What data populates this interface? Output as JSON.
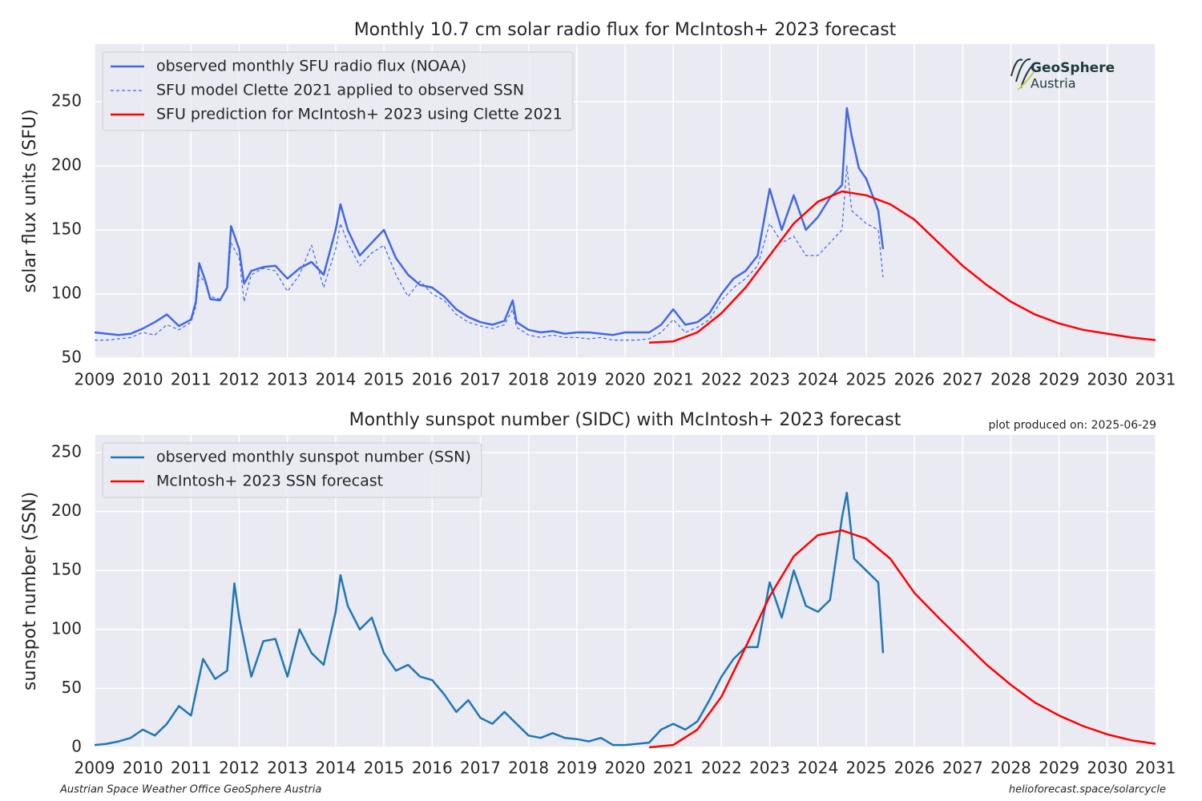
{
  "chart_data": [
    {
      "type": "line",
      "title": "Monthly 10.7 cm solar radio flux for McIntosh+ 2023 forecast",
      "ylabel": "solar flux units (SFU)",
      "xlim": [
        2009,
        2031
      ],
      "xticks": [
        2009,
        2010,
        2011,
        2012,
        2013,
        2014,
        2015,
        2016,
        2017,
        2018,
        2019,
        2020,
        2021,
        2022,
        2023,
        2024,
        2025,
        2026,
        2027,
        2028,
        2029,
        2030,
        2031
      ],
      "ylim": [
        50,
        295
      ],
      "yticks": [
        50,
        100,
        150,
        200,
        250
      ],
      "grid": true,
      "legend": "upper left",
      "series": [
        {
          "name": "observed monthly SFU radio flux (NOAA)",
          "color": "#4169e1",
          "dash": false,
          "x": [
            2009,
            2009.25,
            2009.5,
            2009.75,
            2010,
            2010.25,
            2010.5,
            2010.75,
            2011,
            2011.1,
            2011.17,
            2011.3,
            2011.4,
            2011.6,
            2011.75,
            2011.83,
            2012,
            2012.1,
            2012.25,
            2012.5,
            2012.75,
            2013,
            2013.25,
            2013.5,
            2013.75,
            2014,
            2014.1,
            2014.25,
            2014.5,
            2014.75,
            2015,
            2015.25,
            2015.5,
            2015.75,
            2016,
            2016.25,
            2016.5,
            2016.75,
            2017,
            2017.25,
            2017.5,
            2017.67,
            2017.75,
            2018,
            2018.25,
            2018.5,
            2018.75,
            2019,
            2019.25,
            2019.5,
            2019.75,
            2020,
            2020.25,
            2020.5,
            2020.75,
            2021,
            2021.25,
            2021.5,
            2021.75,
            2022,
            2022.25,
            2022.5,
            2022.75,
            2023,
            2023.25,
            2023.5,
            2023.75,
            2024,
            2024.25,
            2024.5,
            2024.6,
            2024.7,
            2024.85,
            2025,
            2025.25,
            2025.35
          ],
          "values": [
            70,
            69,
            68,
            69,
            73,
            78,
            84,
            75,
            80,
            94,
            124,
            110,
            96,
            95,
            105,
            153,
            135,
            108,
            118,
            121,
            122,
            112,
            120,
            125,
            115,
            150,
            170,
            150,
            130,
            140,
            150,
            128,
            115,
            107,
            105,
            98,
            88,
            82,
            78,
            76,
            79,
            95,
            78,
            72,
            70,
            71,
            69,
            70,
            70,
            69,
            68,
            70,
            70,
            70,
            76,
            88,
            76,
            78,
            85,
            100,
            112,
            118,
            130,
            182,
            150,
            177,
            150,
            160,
            175,
            185,
            245,
            223,
            198,
            190,
            165,
            135
          ]
        },
        {
          "name": "SFU model Clette 2021 applied to observed SSN",
          "color": "#4169e1",
          "dash": true,
          "x": [
            2009,
            2009.25,
            2009.5,
            2009.75,
            2010,
            2010.25,
            2010.5,
            2010.75,
            2011,
            2011.1,
            2011.17,
            2011.3,
            2011.4,
            2011.6,
            2011.75,
            2011.83,
            2012,
            2012.1,
            2012.25,
            2012.5,
            2012.75,
            2013,
            2013.25,
            2013.5,
            2013.75,
            2014,
            2014.1,
            2014.25,
            2014.5,
            2014.75,
            2015,
            2015.25,
            2015.5,
            2015.75,
            2016,
            2016.25,
            2016.5,
            2016.75,
            2017,
            2017.25,
            2017.5,
            2017.67,
            2017.75,
            2018,
            2018.25,
            2018.5,
            2018.75,
            2019,
            2019.25,
            2019.5,
            2019.75,
            2020,
            2020.25,
            2020.5,
            2020.75,
            2021,
            2021.25,
            2021.5,
            2021.75,
            2022,
            2022.25,
            2022.5,
            2022.75,
            2023,
            2023.25,
            2023.5,
            2023.75,
            2024,
            2024.25,
            2024.5,
            2024.6,
            2024.7,
            2024.85,
            2025,
            2025.25,
            2025.35
          ],
          "values": [
            64,
            64,
            65,
            66,
            70,
            68,
            76,
            72,
            78,
            90,
            115,
            108,
            98,
            96,
            104,
            140,
            128,
            94,
            115,
            120,
            118,
            102,
            115,
            138,
            105,
            135,
            155,
            140,
            122,
            132,
            138,
            115,
            98,
            110,
            100,
            95,
            84,
            78,
            75,
            73,
            76,
            88,
            74,
            68,
            66,
            68,
            66,
            66,
            65,
            66,
            64,
            64,
            64,
            65,
            70,
            80,
            70,
            74,
            80,
            95,
            105,
            112,
            122,
            155,
            140,
            145,
            130,
            130,
            140,
            150,
            200,
            165,
            160,
            155,
            150,
            113
          ]
        },
        {
          "name": "SFU prediction for McIntosh+ 2023 using Clette 2021",
          "color": "#ff0000",
          "dash": false,
          "x": [
            2020.5,
            2021,
            2021.5,
            2022,
            2022.5,
            2023,
            2023.5,
            2024,
            2024.5,
            2025,
            2025.5,
            2026,
            2026.5,
            2027,
            2027.5,
            2028,
            2028.5,
            2029,
            2029.5,
            2030,
            2030.5,
            2031
          ],
          "values": [
            62,
            63,
            70,
            85,
            105,
            130,
            155,
            172,
            180,
            177,
            170,
            158,
            140,
            122,
            107,
            94,
            84,
            77,
            72,
            69,
            66,
            64
          ]
        }
      ]
    },
    {
      "type": "line",
      "title": "Monthly sunspot number (SIDC) with McIntosh+ 2023 forecast",
      "ylabel": "sunspot number (SSN)",
      "xlim": [
        2009,
        2031
      ],
      "xticks": [
        2009,
        2010,
        2011,
        2012,
        2013,
        2014,
        2015,
        2016,
        2017,
        2018,
        2019,
        2020,
        2021,
        2022,
        2023,
        2024,
        2025,
        2026,
        2027,
        2028,
        2029,
        2030,
        2031
      ],
      "ylim": [
        0,
        265
      ],
      "yticks": [
        0,
        50,
        100,
        150,
        200,
        250
      ],
      "grid": true,
      "legend": "upper left",
      "series": [
        {
          "name": "observed monthly sunspot number (SSN)",
          "color": "#1f77b4",
          "dash": false,
          "x": [
            2009,
            2009.25,
            2009.5,
            2009.75,
            2010,
            2010.25,
            2010.5,
            2010.75,
            2011,
            2011.25,
            2011.5,
            2011.75,
            2011.9,
            2012,
            2012.25,
            2012.5,
            2012.75,
            2013,
            2013.25,
            2013.5,
            2013.75,
            2014,
            2014.1,
            2014.25,
            2014.5,
            2014.75,
            2015,
            2015.25,
            2015.5,
            2015.75,
            2016,
            2016.25,
            2016.5,
            2016.75,
            2017,
            2017.25,
            2017.5,
            2017.75,
            2018,
            2018.25,
            2018.5,
            2018.75,
            2019,
            2019.25,
            2019.5,
            2019.75,
            2020,
            2020.25,
            2020.5,
            2020.75,
            2021,
            2021.25,
            2021.5,
            2021.75,
            2022,
            2022.25,
            2022.5,
            2022.75,
            2023,
            2023.25,
            2023.5,
            2023.75,
            2024,
            2024.25,
            2024.5,
            2024.6,
            2024.75,
            2025,
            2025.25,
            2025.35
          ],
          "values": [
            2,
            3,
            5,
            8,
            15,
            10,
            20,
            35,
            27,
            75,
            58,
            65,
            139,
            110,
            60,
            90,
            92,
            60,
            100,
            80,
            70,
            115,
            146,
            120,
            100,
            110,
            80,
            65,
            70,
            60,
            57,
            45,
            30,
            40,
            25,
            20,
            30,
            20,
            10,
            8,
            12,
            8,
            7,
            5,
            8,
            2,
            2,
            3,
            4,
            15,
            20,
            15,
            22,
            40,
            60,
            75,
            85,
            85,
            140,
            110,
            150,
            120,
            115,
            125,
            195,
            216,
            160,
            150,
            140,
            80
          ]
        },
        {
          "name": "McIntosh+ 2023 SSN forecast",
          "color": "#ff0000",
          "dash": false,
          "x": [
            2020.5,
            2021,
            2021.5,
            2022,
            2022.5,
            2023,
            2023.5,
            2024,
            2024.5,
            2025,
            2025.5,
            2026,
            2026.5,
            2027,
            2027.5,
            2028,
            2028.5,
            2029,
            2029.5,
            2030,
            2030.5,
            2031
          ],
          "values": [
            0,
            2,
            15,
            43,
            85,
            128,
            162,
            180,
            184,
            177,
            160,
            131,
            110,
            90,
            70,
            53,
            38,
            27,
            18,
            11,
            6,
            3
          ]
        }
      ]
    }
  ],
  "logo": {
    "name": "GeoSphere",
    "country": "Austria"
  },
  "produced": "plot produced on: 2025-06-29",
  "footer_left": "Austrian Space Weather Office   GeoSphere Austria",
  "footer_right": "helioforecast.space/solarcycle"
}
